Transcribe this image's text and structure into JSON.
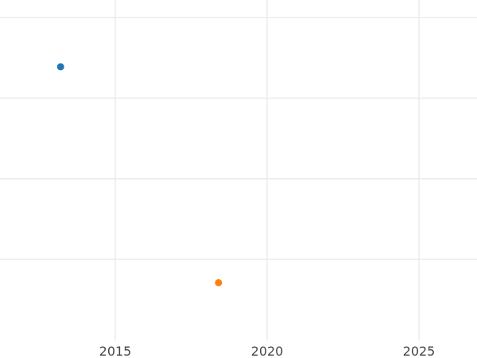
{
  "chart_data": {
    "type": "scatter",
    "title": "",
    "xlabel": "",
    "ylabel": "",
    "xlim": [
      2011.4,
      2026.9
    ],
    "ylim": [
      -1.0,
      3.0
    ],
    "x_ticks": [
      "2015",
      "2020",
      "2025"
    ],
    "y_gridlines": [
      0,
      1,
      2,
      3
    ],
    "y_tick_labels_shown": false,
    "grid": true,
    "legend": "none",
    "points": [
      {
        "x": 2013.2,
        "y": 2.39,
        "color": "#1f77b4"
      },
      {
        "x": 2018.4,
        "y": -0.29,
        "color": "#ff7f0e"
      }
    ]
  },
  "colors": {
    "grid": "#ebebeb",
    "tick_text": "#444444",
    "background": "#ffffff"
  }
}
